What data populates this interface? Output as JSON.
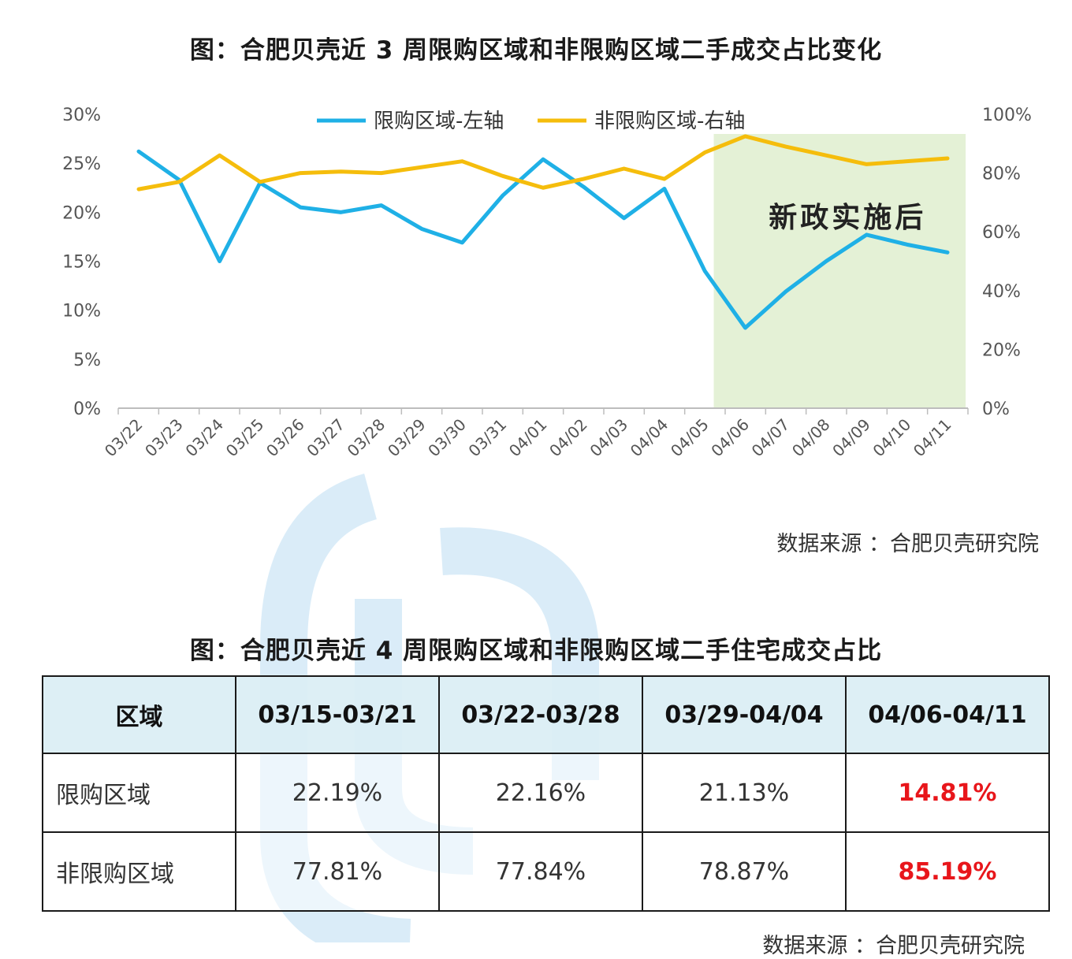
{
  "chart_title": "图：合肥贝壳近 3 周限购区域和非限购区域二手成交占比变化",
  "chart_data": {
    "type": "line",
    "title": "图：合肥贝壳近 3 周限购区域和非限购区域二手成交占比变化",
    "categories": [
      "03/22",
      "03/23",
      "03/24",
      "03/25",
      "03/26",
      "03/27",
      "03/28",
      "03/29",
      "03/30",
      "03/31",
      "04/01",
      "04/02",
      "04/03",
      "04/04",
      "04/05",
      "04/06",
      "04/07",
      "04/08",
      "04/09",
      "04/10",
      "04/11"
    ],
    "series": [
      {
        "name": "限购区域-左轴",
        "axis": "left",
        "color": "#1fb0e6",
        "values": [
          26.2,
          23.3,
          15.0,
          23.0,
          20.5,
          20.0,
          20.7,
          18.3,
          16.9,
          21.7,
          25.4,
          22.6,
          19.4,
          22.4,
          14.0,
          8.2,
          11.9,
          15.0,
          17.7,
          16.7,
          15.9
        ]
      },
      {
        "name": "非限购区域-右轴",
        "axis": "right",
        "color": "#f5bd0c",
        "values": [
          74.5,
          77.0,
          86.0,
          77.0,
          80.0,
          80.5,
          80.0,
          82.0,
          84.0,
          79.0,
          75.0,
          78.0,
          81.5,
          78.0,
          87.0,
          92.5,
          89.0,
          86.0,
          83.0,
          84.0,
          85.0
        ]
      }
    ],
    "y_left": {
      "min": 0,
      "max": 30,
      "ticks": [
        "0%",
        "5%",
        "10%",
        "15%",
        "20%",
        "25%",
        "30%"
      ]
    },
    "y_right": {
      "min": 0,
      "max": 100,
      "ticks": [
        "0%",
        "20%",
        "40%",
        "60%",
        "80%",
        "100%"
      ]
    },
    "legend_position": "top-center",
    "grid": false,
    "highlight": {
      "from": "04/06",
      "to": "04/11",
      "label": "新政实施后",
      "color": "#e4f1d6"
    }
  },
  "chart_source": "数据来源 ：合肥贝壳研究院",
  "table_title": "图：合肥贝壳近 4 周限购区域和非限购区域二手住宅成交占比",
  "table": {
    "headers": [
      "区域",
      "03/15-03/21",
      "03/22-03/28",
      "03/29-04/04",
      "04/06-04/11"
    ],
    "rows": [
      {
        "label": "限购区域",
        "values": [
          "22.19%",
          "22.16%",
          "21.13%",
          "14.81%"
        ]
      },
      {
        "label": "非限购区域",
        "values": [
          "77.81%",
          "77.84%",
          "78.87%",
          "85.19%"
        ]
      }
    ],
    "highlight_color": "#e8161b"
  },
  "table_source": "数据来源 ：合肥贝壳研究院"
}
